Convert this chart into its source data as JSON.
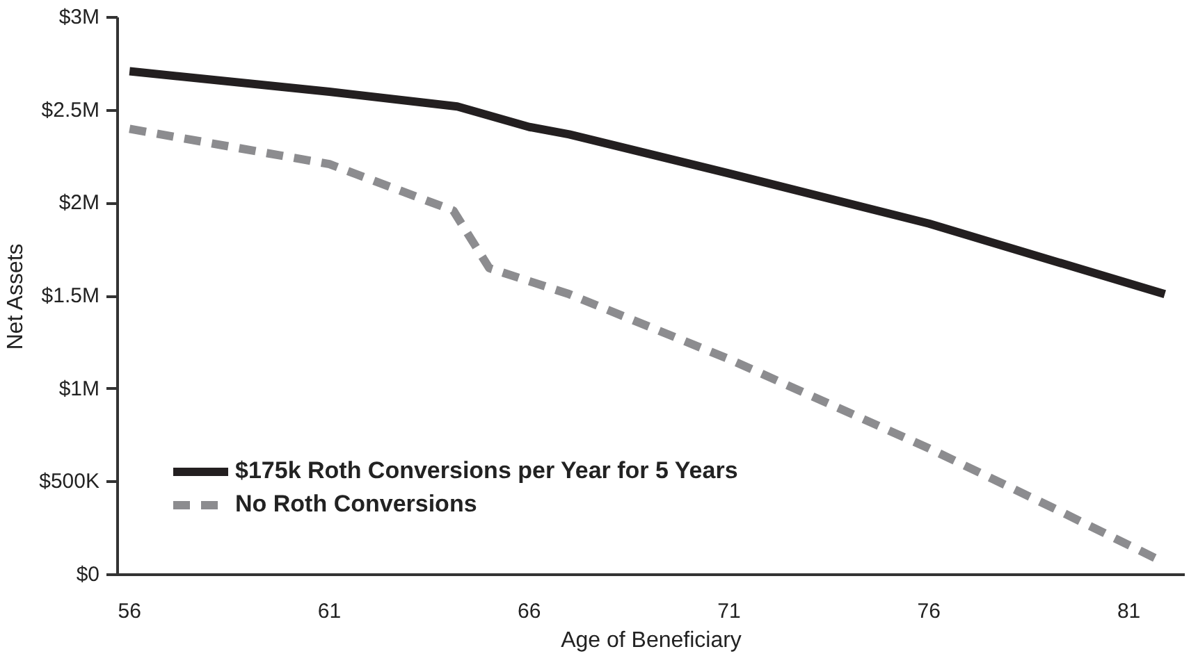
{
  "chart_data": {
    "type": "line",
    "xlabel": "Age of Beneficiary",
    "ylabel": "Net Assets",
    "xlim": [
      55.7,
      82.4
    ],
    "xticks": [
      56,
      61,
      66,
      71,
      76,
      81
    ],
    "ylim": [
      0,
      3000000
    ],
    "yticks": [
      {
        "value": 0,
        "label": "$0"
      },
      {
        "value": 500000,
        "label": "$500K"
      },
      {
        "value": 1000000,
        "label": "$1M"
      },
      {
        "value": 1500000,
        "label": "$1.5M"
      },
      {
        "value": 2000000,
        "label": "$2M"
      },
      {
        "value": 2500000,
        "label": "$2.5M"
      },
      {
        "value": 3000000,
        "label": "$3M"
      }
    ],
    "grid": false,
    "legend": "bottom left",
    "marker": "none",
    "series": [
      {
        "name": "$175k Roth Conversions per Year for 5 Years",
        "color": "#231f20",
        "line_style": "solid",
        "x": [
          56,
          61,
          64.2,
          66,
          67,
          71,
          76,
          81.9
        ],
        "values": [
          2710000,
          2600000,
          2520000,
          2410000,
          2370000,
          2160000,
          1890000,
          1510000
        ]
      },
      {
        "name": "No Roth Conversions",
        "color": "#8c8c8f",
        "line_style": "dashed",
        "x": [
          56,
          61,
          64.1,
          65,
          67,
          71,
          76,
          79.1,
          81.7
        ],
        "values": [
          2400000,
          2210000,
          1960000,
          1650000,
          1510000,
          1160000,
          680000,
          360000,
          85000
        ]
      }
    ]
  }
}
